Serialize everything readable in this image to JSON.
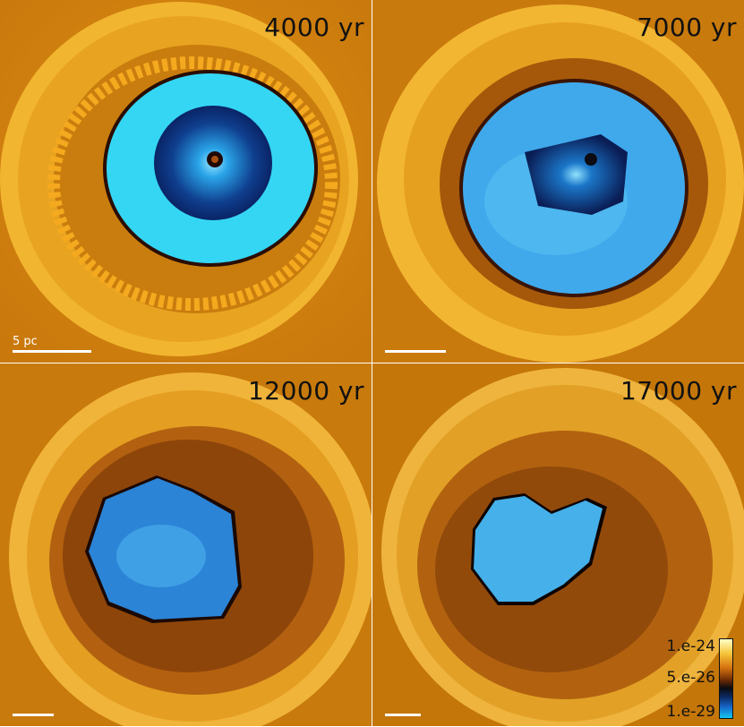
{
  "panels": [
    {
      "time": "4000 yr",
      "scale_label": "5 pc"
    },
    {
      "time": "7000 yr",
      "scale_label": ""
    },
    {
      "time": "12000 yr",
      "scale_label": ""
    },
    {
      "time": "17000 yr",
      "scale_label": ""
    }
  ],
  "colorbar": {
    "max_label": "1.e-24",
    "mid_label": "5.e-26",
    "min_label": "1.e-29",
    "colors": [
      "#ffffc8",
      "#f6c63a",
      "#d57410",
      "#6a2a05",
      "#0b0b10",
      "#0c2c66",
      "#1766c8",
      "#12c6f0"
    ]
  },
  "colors": {
    "ambient": "#e39a17",
    "shell": "#f4b630",
    "hot_interior": "#2fd3f2",
    "core": "#0a1e5a",
    "filaments": "#8a4208"
  }
}
